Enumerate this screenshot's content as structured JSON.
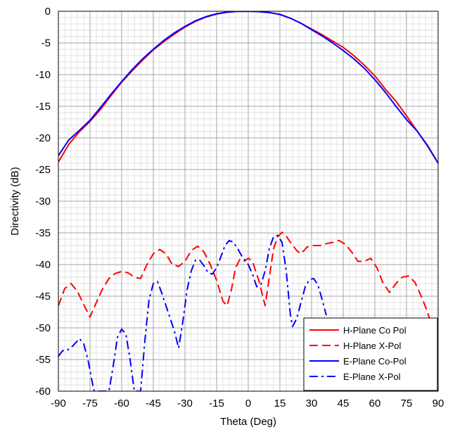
{
  "chart_data": {
    "type": "line",
    "title": "",
    "xlabel": "Theta (Deg)",
    "ylabel": "Directivity (dB)",
    "xlim": [
      -90,
      90
    ],
    "ylim": [
      -60,
      0
    ],
    "xticks": [
      -90,
      -75,
      -60,
      -45,
      -30,
      -15,
      0,
      15,
      30,
      45,
      60,
      75,
      90
    ],
    "yticks": [
      0,
      -5,
      -10,
      -15,
      -20,
      -25,
      -30,
      -35,
      -40,
      -45,
      -50,
      -55,
      -60
    ],
    "grid": true,
    "legend_position": "bottom-right",
    "series": [
      {
        "name": "H-Plane Co Pol",
        "color": "#ff0000",
        "dash": "solid",
        "points": [
          [
            -90,
            -23.8
          ],
          [
            -85,
            -21.0
          ],
          [
            -80,
            -19.0
          ],
          [
            -75,
            -17.4
          ],
          [
            -70,
            -15.5
          ],
          [
            -65,
            -13.3
          ],
          [
            -60,
            -11.2
          ],
          [
            -55,
            -9.4
          ],
          [
            -50,
            -7.7
          ],
          [
            -45,
            -6.1
          ],
          [
            -40,
            -4.8
          ],
          [
            -35,
            -3.6
          ],
          [
            -30,
            -2.5
          ],
          [
            -25,
            -1.6
          ],
          [
            -20,
            -0.9
          ],
          [
            -15,
            -0.45
          ],
          [
            -10,
            -0.15
          ],
          [
            -5,
            -0.02
          ],
          [
            0,
            0
          ],
          [
            5,
            -0.05
          ],
          [
            10,
            -0.2
          ],
          [
            15,
            -0.5
          ],
          [
            20,
            -1.1
          ],
          [
            25,
            -1.9
          ],
          [
            30,
            -2.8
          ],
          [
            35,
            -3.7
          ],
          [
            40,
            -4.7
          ],
          [
            45,
            -5.7
          ],
          [
            50,
            -7.0
          ],
          [
            55,
            -8.5
          ],
          [
            60,
            -10.2
          ],
          [
            65,
            -12.3
          ],
          [
            70,
            -14.2
          ],
          [
            75,
            -16.5
          ],
          [
            80,
            -18.9
          ],
          [
            85,
            -21.3
          ],
          [
            90,
            -24.0
          ]
        ]
      },
      {
        "name": "H-Plane X-Pol",
        "color": "#ff0000",
        "dash": "dashed",
        "points": [
          [
            -90,
            -46.5
          ],
          [
            -87,
            -43.8
          ],
          [
            -84,
            -43.0
          ],
          [
            -81,
            -44.2
          ],
          [
            -78,
            -46.3
          ],
          [
            -75,
            -48.3
          ],
          [
            -72,
            -46.0
          ],
          [
            -69,
            -43.8
          ],
          [
            -66,
            -42.2
          ],
          [
            -63,
            -41.4
          ],
          [
            -60,
            -41.1
          ],
          [
            -57,
            -41.3
          ],
          [
            -54,
            -42.0
          ],
          [
            -51,
            -42.2
          ],
          [
            -48,
            -40.0
          ],
          [
            -45,
            -38.3
          ],
          [
            -42,
            -37.6
          ],
          [
            -39,
            -38.3
          ],
          [
            -36,
            -40.0
          ],
          [
            -33,
            -40.3
          ],
          [
            -30,
            -39.5
          ],
          [
            -27,
            -37.8
          ],
          [
            -24,
            -37.1
          ],
          [
            -21,
            -38.0
          ],
          [
            -18,
            -40.0
          ],
          [
            -15,
            -42.5
          ],
          [
            -12,
            -45.8
          ],
          [
            -10,
            -46.5
          ],
          [
            -8,
            -44.0
          ],
          [
            -6,
            -40.5
          ],
          [
            -4,
            -39.2
          ],
          [
            -2,
            -39.5
          ],
          [
            0,
            -39.0
          ],
          [
            2,
            -39.5
          ],
          [
            5,
            -42.5
          ],
          [
            8,
            -46.5
          ],
          [
            10,
            -42.0
          ],
          [
            12,
            -37.5
          ],
          [
            14,
            -35.6
          ],
          [
            16,
            -34.9
          ],
          [
            18,
            -35.5
          ],
          [
            20,
            -36.5
          ],
          [
            23,
            -37.8
          ],
          [
            25,
            -38.3
          ],
          [
            28,
            -37.2
          ],
          [
            31,
            -37.0
          ],
          [
            34,
            -37.0
          ],
          [
            37,
            -36.7
          ],
          [
            40,
            -36.5
          ],
          [
            43,
            -36.2
          ],
          [
            46,
            -36.8
          ],
          [
            49,
            -38.0
          ],
          [
            52,
            -39.5
          ],
          [
            55,
            -39.5
          ],
          [
            58,
            -39.0
          ],
          [
            61,
            -40.5
          ],
          [
            64,
            -43.0
          ],
          [
            67,
            -44.4
          ],
          [
            70,
            -43.0
          ],
          [
            73,
            -42.0
          ],
          [
            76,
            -41.8
          ],
          [
            79,
            -42.8
          ],
          [
            82,
            -45.0
          ],
          [
            85,
            -47.5
          ],
          [
            88,
            -51.0
          ],
          [
            90,
            -53.0
          ]
        ]
      },
      {
        "name": "E-Plane Co-Pol",
        "color": "#0000ff",
        "dash": "solid",
        "points": [
          [
            -90,
            -22.8
          ],
          [
            -85,
            -20.3
          ],
          [
            -80,
            -18.8
          ],
          [
            -75,
            -17.2
          ],
          [
            -70,
            -15.2
          ],
          [
            -65,
            -13.1
          ],
          [
            -60,
            -11.1
          ],
          [
            -55,
            -9.2
          ],
          [
            -50,
            -7.5
          ],
          [
            -45,
            -6.0
          ],
          [
            -40,
            -4.6
          ],
          [
            -35,
            -3.4
          ],
          [
            -30,
            -2.4
          ],
          [
            -25,
            -1.5
          ],
          [
            -20,
            -0.85
          ],
          [
            -15,
            -0.4
          ],
          [
            -10,
            -0.12
          ],
          [
            -5,
            -0.02
          ],
          [
            0,
            0
          ],
          [
            5,
            -0.05
          ],
          [
            10,
            -0.2
          ],
          [
            15,
            -0.5
          ],
          [
            20,
            -1.1
          ],
          [
            25,
            -1.9
          ],
          [
            30,
            -2.9
          ],
          [
            35,
            -3.9
          ],
          [
            40,
            -5.0
          ],
          [
            45,
            -6.2
          ],
          [
            50,
            -7.5
          ],
          [
            55,
            -9.0
          ],
          [
            60,
            -10.8
          ],
          [
            65,
            -12.8
          ],
          [
            70,
            -15.0
          ],
          [
            75,
            -17.1
          ],
          [
            80,
            -18.9
          ],
          [
            85,
            -21.2
          ],
          [
            90,
            -24.0
          ]
        ]
      },
      {
        "name": "E-Plane X-Pol",
        "color": "#0000ff",
        "dash": "dashdot",
        "points": [
          [
            -90,
            -54.5
          ],
          [
            -88,
            -53.6
          ],
          [
            -86,
            -53.6
          ],
          [
            -83,
            -52.8
          ],
          [
            -80,
            -51.7
          ],
          [
            -78,
            -52.5
          ],
          [
            -76,
            -55.0
          ],
          [
            -74,
            -58.5
          ],
          [
            -73,
            -60
          ],
          [
            -66,
            -60
          ],
          [
            -64,
            -56.0
          ],
          [
            -62,
            -51.5
          ],
          [
            -60,
            -50.2
          ],
          [
            -58,
            -51.0
          ],
          [
            -56,
            -55.0
          ],
          [
            -54,
            -60
          ],
          [
            -51,
            -60
          ],
          [
            -49,
            -52.0
          ],
          [
            -47,
            -45.5
          ],
          [
            -45,
            -43.0
          ],
          [
            -43,
            -42.7
          ],
          [
            -41,
            -44.5
          ],
          [
            -38,
            -47.5
          ],
          [
            -35,
            -50.5
          ],
          [
            -33,
            -53.2
          ],
          [
            -31,
            -49.0
          ],
          [
            -29,
            -44.0
          ],
          [
            -27,
            -41.0
          ],
          [
            -25,
            -39.3
          ],
          [
            -23,
            -39.3
          ],
          [
            -21,
            -40.2
          ],
          [
            -19,
            -41.3
          ],
          [
            -17,
            -41.5
          ],
          [
            -15,
            -40.5
          ],
          [
            -13,
            -38.8
          ],
          [
            -11,
            -37.0
          ],
          [
            -9,
            -36.2
          ],
          [
            -7,
            -36.5
          ],
          [
            -5,
            -37.5
          ],
          [
            -3,
            -38.7
          ],
          [
            0,
            -40.0
          ],
          [
            2,
            -41.5
          ],
          [
            4,
            -43.5
          ],
          [
            6,
            -43.2
          ],
          [
            8,
            -41.0
          ],
          [
            10,
            -37.5
          ],
          [
            12,
            -35.6
          ],
          [
            14,
            -35.4
          ],
          [
            16,
            -36.5
          ],
          [
            18,
            -41.0
          ],
          [
            20,
            -48.0
          ],
          [
            21,
            -49.8
          ],
          [
            23,
            -48.5
          ],
          [
            25,
            -46.0
          ],
          [
            27,
            -43.5
          ],
          [
            29,
            -42.4
          ],
          [
            31,
            -42.2
          ],
          [
            33,
            -43.2
          ],
          [
            35,
            -45.5
          ],
          [
            37,
            -48.0
          ]
        ]
      }
    ]
  }
}
